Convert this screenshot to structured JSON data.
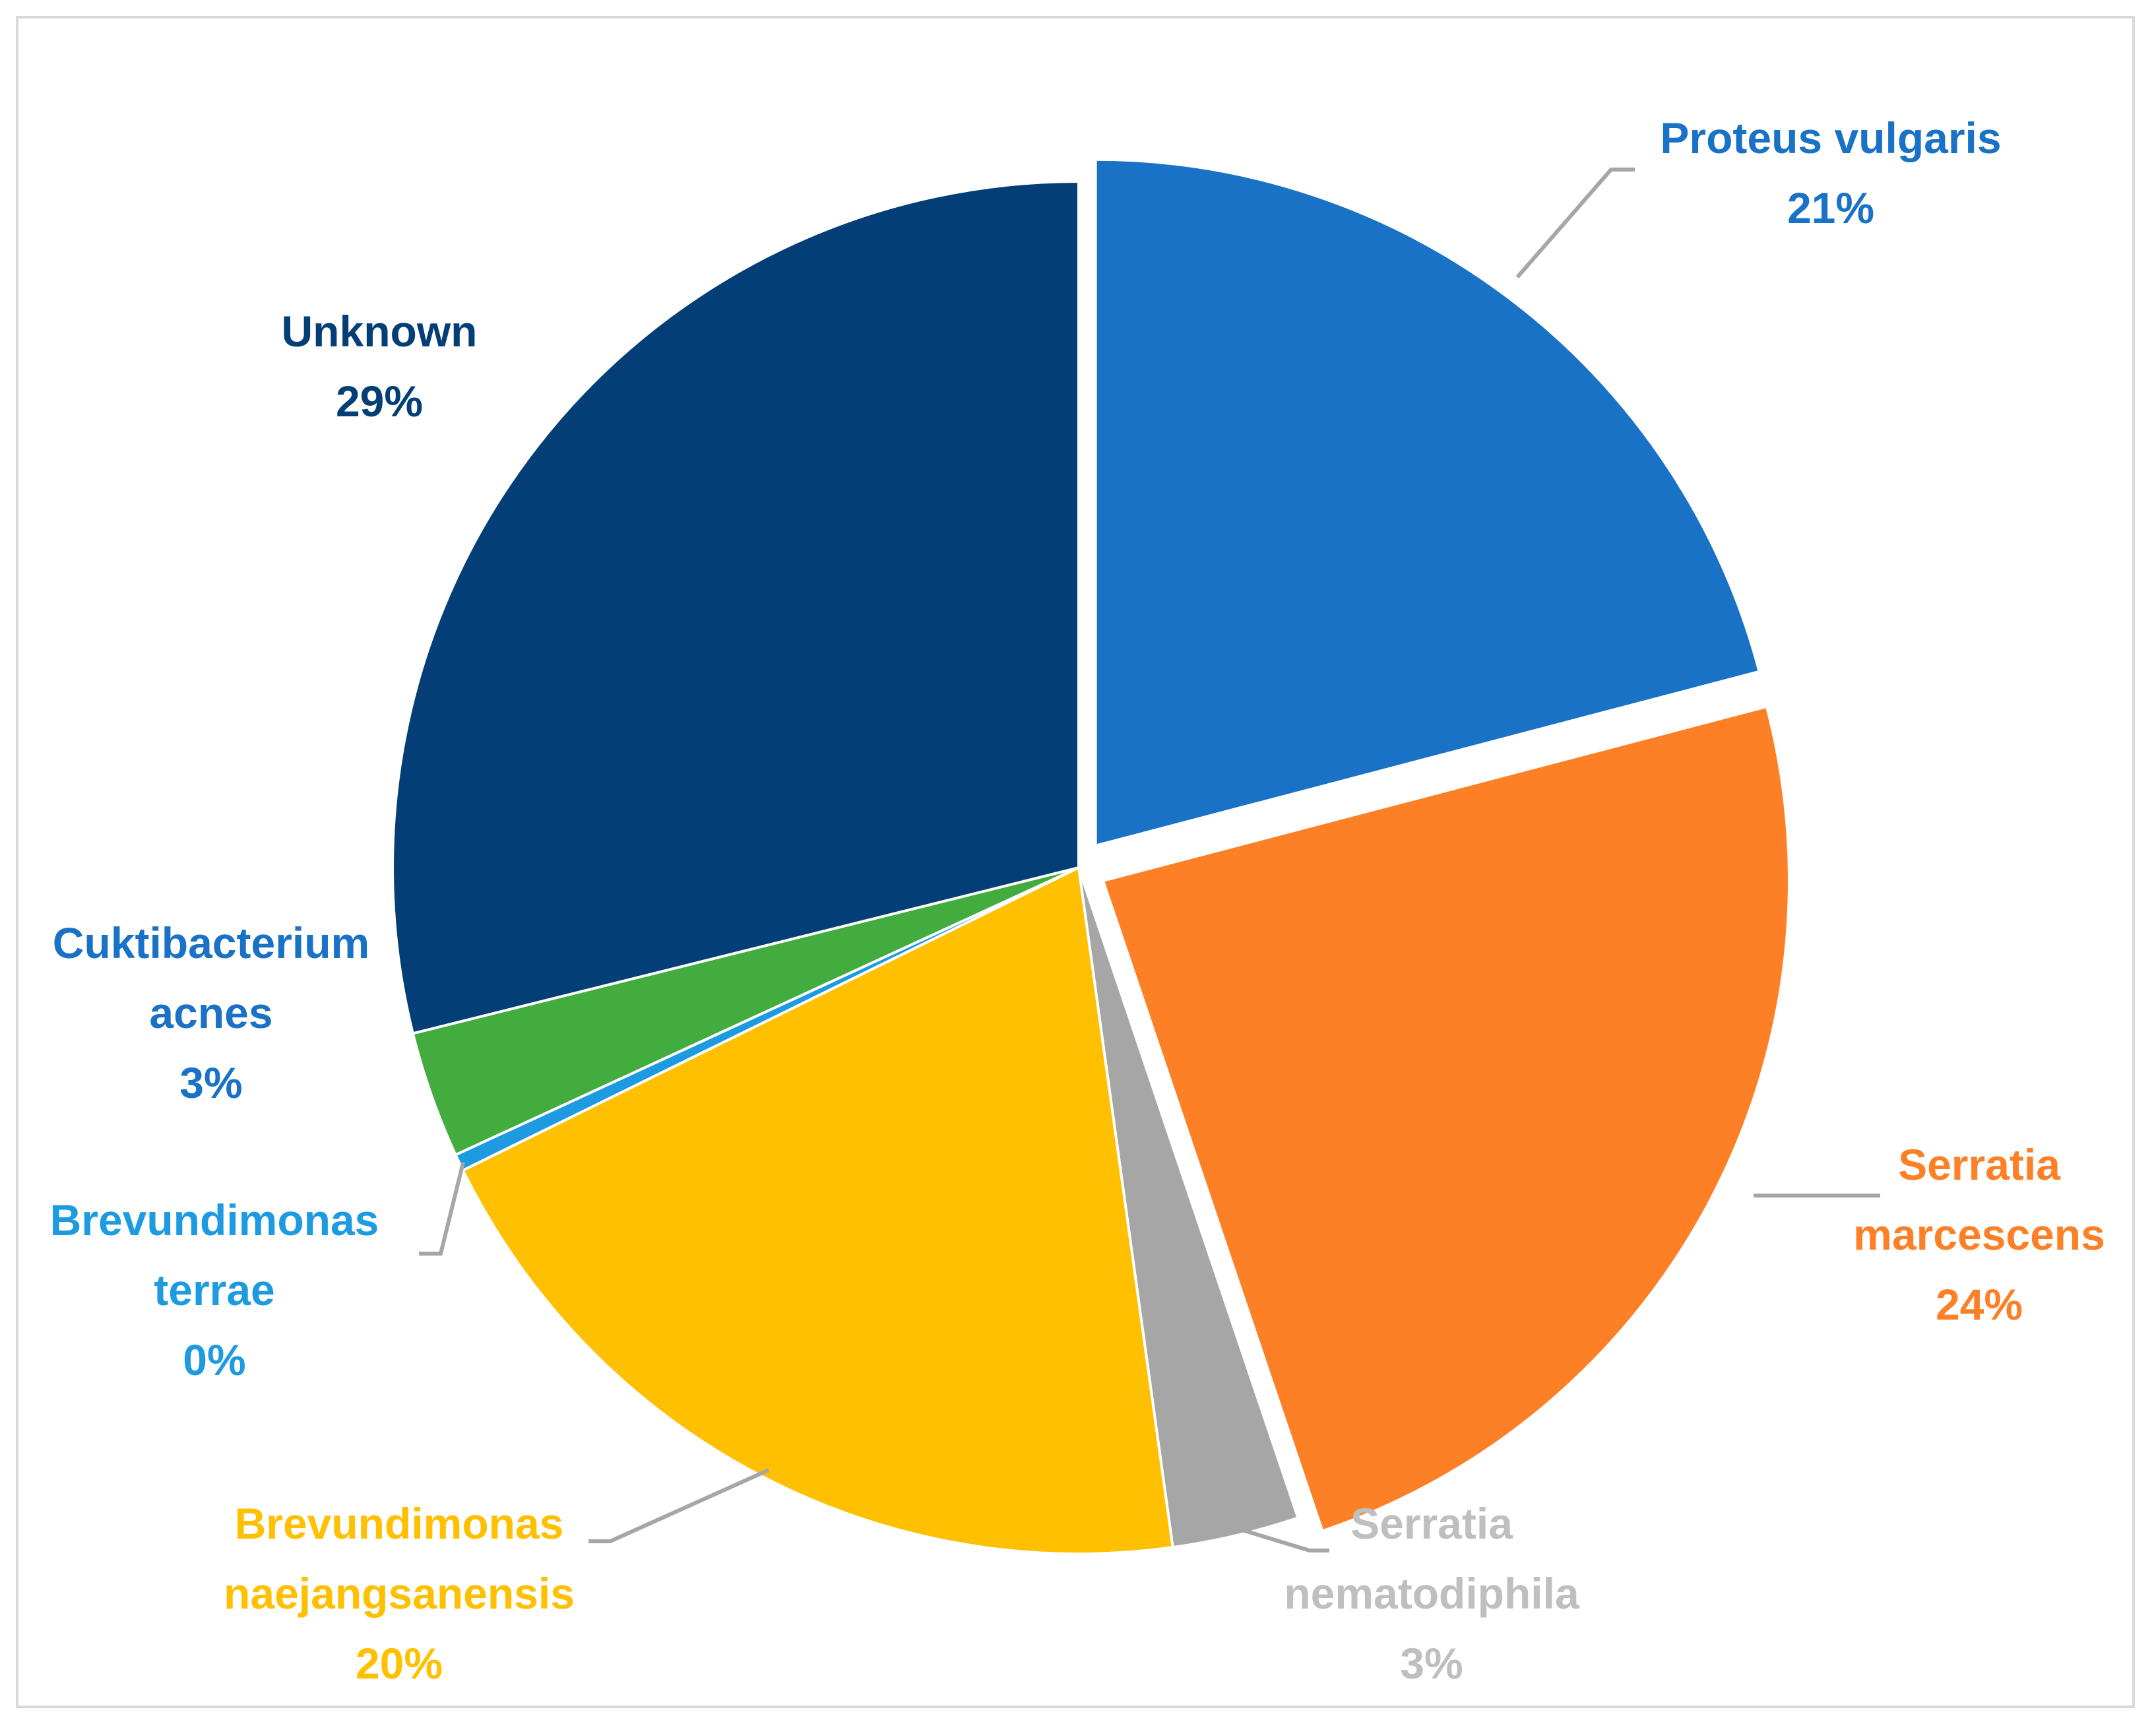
{
  "chart_data": {
    "type": "pie",
    "title": "",
    "slices": [
      {
        "name": "Proteus vulgaris",
        "percent_label": "21%",
        "value": 21,
        "color": "#1a72c6",
        "exploded": true
      },
      {
        "name": "Serratia marcescens",
        "percent_label": "24%",
        "value": 24,
        "color": "#fd7f26",
        "exploded": true
      },
      {
        "name": "Serratia nematodiphila",
        "percent_label": "3%",
        "value": 3,
        "color": "#a6a6a6",
        "exploded": false
      },
      {
        "name": "Brevundimonas naejangsanensis",
        "percent_label": "20%",
        "value": 20,
        "color": "#fec000",
        "exploded": false
      },
      {
        "name": "Brevundimonas terrae",
        "percent_label": "0%",
        "value": 0.4,
        "color": "#1e9be0",
        "exploded": false
      },
      {
        "name": "Cuktibacterium acnes",
        "percent_label": "3%",
        "value": 3,
        "color": "#42ac3e",
        "exploded": false
      },
      {
        "name": "Unknown",
        "percent_label": "29%",
        "value": 29,
        "color": "#033f76",
        "exploded": false
      }
    ],
    "labels": [
      {
        "lines": [
          "Proteus vulgaris",
          "21%"
        ],
        "color": "#1a72c6"
      },
      {
        "lines": [
          "Serratia",
          "marcescens",
          "24%"
        ],
        "color": "#fd7f26"
      },
      {
        "lines": [
          "Serratia",
          "nematodiphila",
          "3%"
        ],
        "color": "#bfbfbf"
      },
      {
        "lines": [
          "Brevundimonas",
          "naejangsanensis",
          "20%"
        ],
        "color": "#fec000"
      },
      {
        "lines": [
          "Brevundimonas",
          "terrae",
          "0%"
        ],
        "color": "#1e9be0"
      },
      {
        "lines": [
          "Cuktibacterium",
          "acnes",
          "3%"
        ],
        "color": "#1a72c6"
      },
      {
        "lines": [
          "Unknown",
          "29%"
        ],
        "color": "#033f76"
      }
    ],
    "legend": "none",
    "leader_line_color": "#a6a6a6"
  }
}
